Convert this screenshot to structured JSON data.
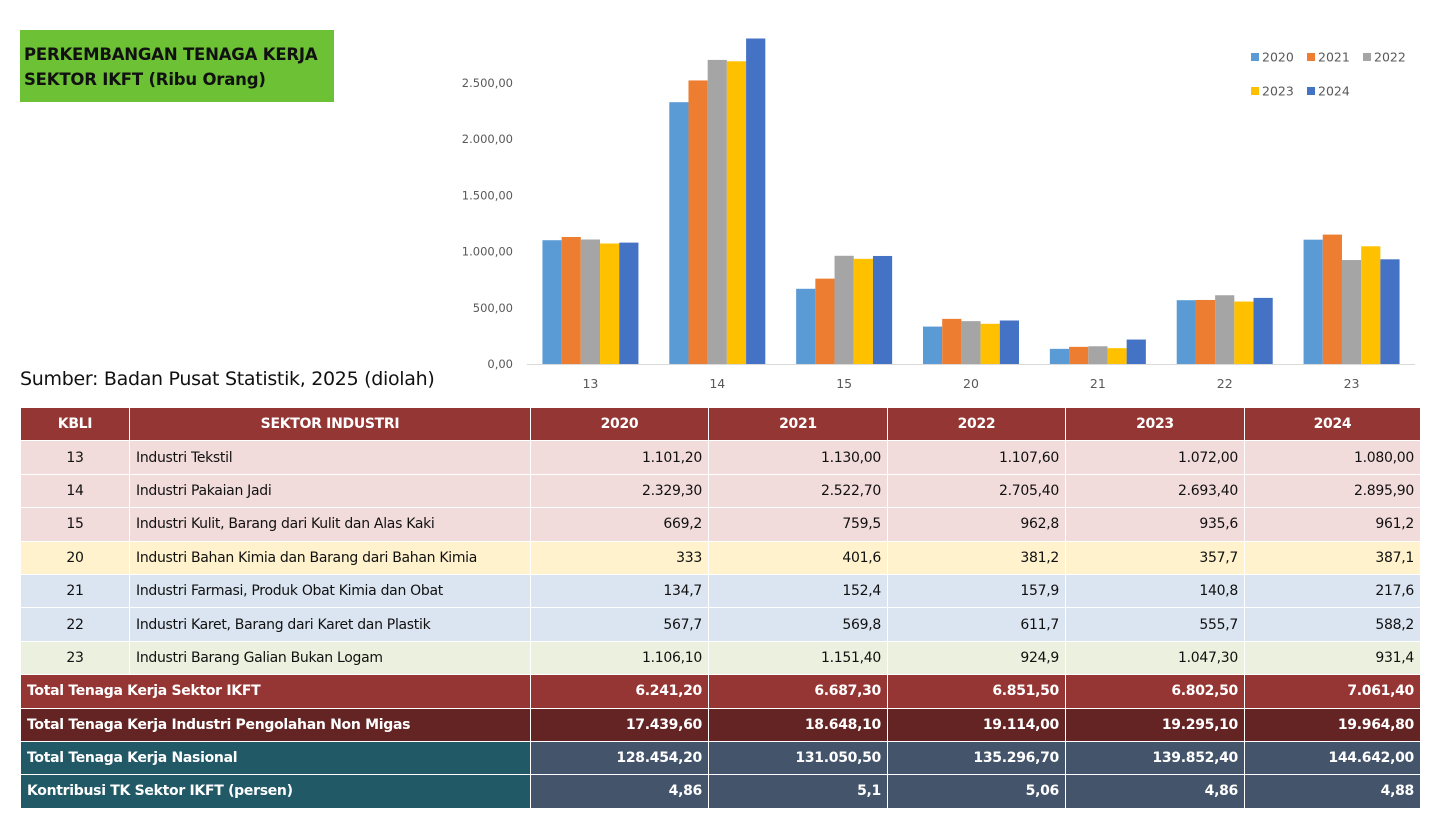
{
  "title": {
    "line1": "PERKEMBANGAN TENAGA KERJA",
    "line2": "SEKTOR IKFT (Ribu Orang)"
  },
  "source": "Sumber: Badan Pusat Statistik, 2025 (diolah)",
  "colors": {
    "2020": "#5b9bd5",
    "2021": "#ed7d31",
    "2022": "#a5a5a5",
    "2023": "#ffc000",
    "2024": "#4472c4",
    "header": "#943634",
    "title_bg": "#6dc135"
  },
  "chart_data": {
    "type": "bar",
    "title": "",
    "xlabel": "",
    "ylabel": "",
    "categories": [
      "13",
      "14",
      "15",
      "20",
      "21",
      "22",
      "23"
    ],
    "ylim": [
      0,
      2900
    ],
    "yticks": [
      0,
      500,
      1000,
      1500,
      2000,
      2500
    ],
    "ytick_labels": [
      "0,00",
      "500,00",
      "1.000,00",
      "1.500,00",
      "2.000,00",
      "2.500,00"
    ],
    "grid": false,
    "legend_position": "top-right",
    "series": [
      {
        "name": "2020",
        "color": "#5b9bd5",
        "values": [
          1101.2,
          2329.3,
          669.2,
          333,
          134.7,
          567.7,
          1106.1
        ]
      },
      {
        "name": "2021",
        "color": "#ed7d31",
        "values": [
          1130.0,
          2522.7,
          759.5,
          401.6,
          152.4,
          569.8,
          1151.4
        ]
      },
      {
        "name": "2022",
        "color": "#a5a5a5",
        "values": [
          1107.6,
          2705.4,
          962.8,
          381.2,
          157.9,
          611.7,
          924.9
        ]
      },
      {
        "name": "2023",
        "color": "#ffc000",
        "values": [
          1072.0,
          2693.4,
          935.6,
          357.7,
          140.8,
          555.7,
          1047.3
        ]
      },
      {
        "name": "2024",
        "color": "#4472c4",
        "values": [
          1080.0,
          2895.9,
          961.2,
          387.1,
          217.6,
          588.2,
          931.4
        ]
      }
    ]
  },
  "table": {
    "headers": [
      "KBLI",
      "SEKTOR INDUSTRI",
      "2020",
      "2021",
      "2022",
      "2023",
      "2024"
    ],
    "rows": [
      {
        "kbli": "13",
        "sektor": "Industri Tekstil",
        "values": [
          "1.101,20",
          "1.130,00",
          "1.107,60",
          "1.072,00",
          "1.080,00"
        ]
      },
      {
        "kbli": "14",
        "sektor": "Industri Pakaian Jadi",
        "values": [
          "2.329,30",
          "2.522,70",
          "2.705,40",
          "2.693,40",
          "2.895,90"
        ]
      },
      {
        "kbli": "15",
        "sektor": "Industri Kulit, Barang dari Kulit dan Alas Kaki",
        "values": [
          "669,2",
          "759,5",
          "962,8",
          "935,6",
          "961,2"
        ]
      },
      {
        "kbli": "20",
        "sektor": "Industri Bahan Kimia dan Barang dari Bahan Kimia",
        "values": [
          "333",
          "401,6",
          "381,2",
          "357,7",
          "387,1"
        ]
      },
      {
        "kbli": "21",
        "sektor": "Industri Farmasi, Produk Obat Kimia dan Obat",
        "values": [
          "134,7",
          "152,4",
          "157,9",
          "140,8",
          "217,6"
        ]
      },
      {
        "kbli": "22",
        "sektor": "Industri Karet, Barang dari Karet dan Plastik",
        "values": [
          "567,7",
          "569,8",
          "611,7",
          "555,7",
          "588,2"
        ]
      },
      {
        "kbli": "23",
        "sektor": "Industri Barang Galian Bukan Logam",
        "values": [
          "1.106,10",
          "1.151,40",
          "924,9",
          "1.047,30",
          "931,4"
        ]
      }
    ],
    "summary": [
      {
        "label": "Total Tenaga Kerja Sektor IKFT",
        "values": [
          "6.241,20",
          "6.687,30",
          "6.851,50",
          "6.802,50",
          "7.061,40"
        ]
      },
      {
        "label": "Total Tenaga Kerja Industri Pengolahan Non Migas",
        "values": [
          "17.439,60",
          "18.648,10",
          "19.114,00",
          "19.295,10",
          "19.964,80"
        ]
      },
      {
        "label": "Total Tenaga Kerja Nasional",
        "values": [
          "128.454,20",
          "131.050,50",
          "135.296,70",
          "139.852,40",
          "144.642,00"
        ]
      },
      {
        "label": "Kontribusi TK Sektor IKFT (persen)",
        "values": [
          "4,86",
          "5,1",
          "5,06",
          "4,86",
          "4,88"
        ]
      }
    ]
  }
}
